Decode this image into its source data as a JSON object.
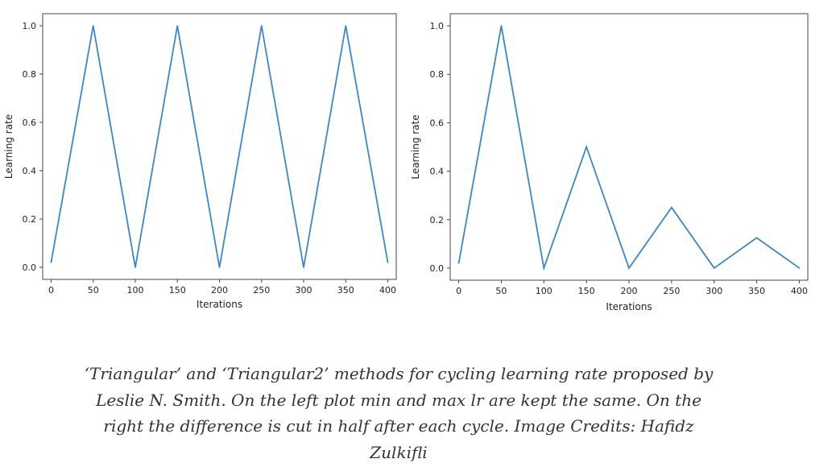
{
  "chart_data": [
    {
      "type": "line",
      "xlabel": "Iterations",
      "ylabel": "Learning rate",
      "xlim": [
        -10,
        410
      ],
      "ylim": [
        -0.05,
        1.05
      ],
      "xticks": [
        0,
        50,
        100,
        150,
        200,
        250,
        300,
        350,
        400
      ],
      "yticks": [
        0.0,
        0.2,
        0.4,
        0.6,
        0.8,
        1.0
      ],
      "xtick_labels": [
        "0",
        "50",
        "100",
        "150",
        "200",
        "250",
        "300",
        "350",
        "400"
      ],
      "ytick_labels": [
        "0.0",
        "0.2",
        "0.4",
        "0.6",
        "0.8",
        "1.0"
      ],
      "grid": false,
      "series": [
        {
          "color": "#3a86c8",
          "x": [
            0,
            50,
            100,
            150,
            200,
            250,
            300,
            350,
            400
          ],
          "y": [
            0.02,
            1.0,
            0.0,
            1.0,
            0.0,
            1.0,
            0.0,
            1.0,
            0.02
          ]
        }
      ]
    },
    {
      "type": "line",
      "xlabel": "Iterations",
      "ylabel": "Learning rate",
      "xlim": [
        -10,
        410
      ],
      "ylim": [
        -0.05,
        1.05
      ],
      "xticks": [
        0,
        50,
        100,
        150,
        200,
        250,
        300,
        350,
        400
      ],
      "yticks": [
        0.0,
        0.2,
        0.4,
        0.6,
        0.8,
        1.0
      ],
      "xtick_labels": [
        "0",
        "50",
        "100",
        "150",
        "200",
        "250",
        "300",
        "350",
        "400"
      ],
      "ytick_labels": [
        "0.0",
        "0.2",
        "0.4",
        "0.6",
        "0.8",
        "1.0"
      ],
      "grid": false,
      "series": [
        {
          "color": "#3a86c8",
          "x": [
            0,
            50,
            100,
            150,
            200,
            250,
            300,
            350,
            400
          ],
          "y": [
            0.02,
            1.0,
            0.0,
            0.5,
            0.0,
            0.25,
            0.0,
            0.125,
            0.0
          ]
        }
      ]
    }
  ],
  "caption": {
    "lines": [
      "‘Triangular’ and ‘Triangular2’ methods for cycling learning rate proposed by",
      "Leslie N. Smith. On the left plot min and max lr are kept the same. On the",
      "right the difference is cut in half after each cycle. Image Credits: Hafidz",
      "Zulkifli"
    ]
  }
}
